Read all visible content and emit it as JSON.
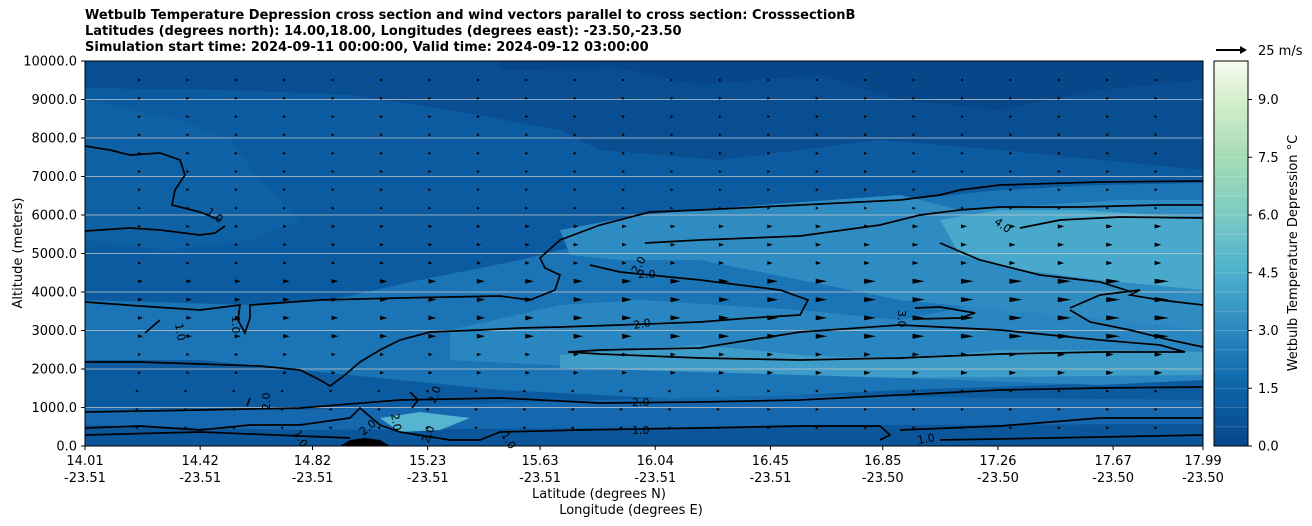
{
  "chart_data": {
    "type": "contour",
    "title_lines": [
      "Wetbulb Temperature Depression cross section and wind vectors parallel to cross section: CrosssectionB",
      "Latitudes (degrees north): 14.00,18.00, Longitudes (degrees east): -23.50,-23.50",
      "Simulation start time: 2024-09-11 00:00:00, Valid time: 2024-09-12 03:00:00"
    ],
    "ylabel": "Altitude (meters)",
    "xlabel_lat": "Latitude (degrees N)",
    "xlabel_lon": "Longitude (degrees E)",
    "ylim": [
      0,
      10000
    ],
    "y_ticks": [
      "0.0",
      "1000.0",
      "2000.0",
      "3000.0",
      "4000.0",
      "5000.0",
      "6000.0",
      "7000.0",
      "8000.0",
      "9000.0",
      "10000.0"
    ],
    "x_ticks_lat": [
      "14.01",
      "14.42",
      "14.82",
      "15.23",
      "15.63",
      "16.04",
      "16.45",
      "16.85",
      "17.26",
      "17.67",
      "17.99"
    ],
    "x_ticks_lon": [
      "-23.51",
      "-23.51",
      "-23.51",
      "-23.51",
      "-23.51",
      "-23.51",
      "-23.51",
      "-23.50",
      "-23.50",
      "-23.50",
      "-23.50"
    ],
    "colorbar": {
      "label": "Wetbulb Temperature Depression °C",
      "range": [
        0,
        10
      ],
      "ticks": [
        "0.0",
        "1.5",
        "3.0",
        "4.5",
        "6.0",
        "7.5",
        "9.0"
      ]
    },
    "quiver_key": "25 m/s",
    "contour_labels": [
      "1.0",
      "1.0",
      "1.0",
      "1.0",
      "1.0",
      "2.0",
      "2.0",
      "2.0",
      "2.0",
      "2.0",
      "2.0",
      "2.0",
      "3.0",
      "4.0",
      "2.0",
      "2.0",
      "1.0",
      "1.0"
    ],
    "colors": {
      "darkest": "#08468a",
      "dark": "#0c5aa0",
      "mid_dark": "#1a6fb4",
      "mid": "#2a86c0",
      "mid_light": "#3b98c8",
      "light": "#55b4d0",
      "grid": "#c8c8c8"
    }
  }
}
